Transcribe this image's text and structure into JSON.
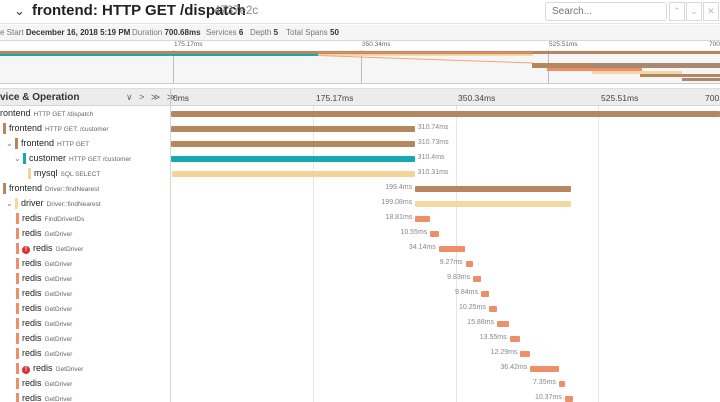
{
  "colors": {
    "frontend": "#b5875e",
    "customer": "#17a9b0",
    "mysql": "#f4d399",
    "driver": "#f3d9a1",
    "redis": "#ef8f6a",
    "error": "#d93434"
  },
  "header": {
    "chevron": "⌄",
    "title": "frontend: HTTP GET /dispatch",
    "trace_id": "4737e2c",
    "search_placeholder": "Search...",
    "nav_up": "⌃",
    "nav_down": "⌄",
    "nav_close": "✕"
  },
  "meta": {
    "start_label": "e Start",
    "start_value": "December 16, 2018 5:19 PM",
    "duration_label": "Duration",
    "duration_value": "700.68ms",
    "services_label": "Services",
    "services_value": "6",
    "depth_label": "Depth",
    "depth_value": "5",
    "spans_label": "Total Spans",
    "spans_value": "50"
  },
  "minimap_ticks": [
    "175.17ms",
    "350.34ms",
    "525.51ms",
    "700"
  ],
  "column_header": {
    "title": "vice & Operation",
    "controls": "∨ > ≫ ≫",
    "ticks": [
      "0ms",
      "175.17ms",
      "350.34ms",
      "525.51ms",
      "700."
    ]
  },
  "timeline": {
    "total_ms": 700.68
  },
  "spans": [
    {
      "service": "rontend",
      "op": "HTTP GET /dispatch",
      "depth": 0,
      "toggle": "",
      "color": "frontend",
      "start": 0,
      "dur": 700.68,
      "label": "",
      "error": false
    },
    {
      "service": "frontend",
      "op": "HTTP GET: /customer",
      "depth": 1,
      "toggle": "",
      "color": "frontend",
      "start": 0.4,
      "dur": 310.74,
      "label": "310.74ms",
      "error": false
    },
    {
      "service": "frontend",
      "op": "HTTP GET",
      "depth": 2,
      "toggle": "⌄",
      "color": "frontend",
      "start": 0.5,
      "dur": 310.73,
      "label": "310.73ms",
      "error": false
    },
    {
      "service": "customer",
      "op": "HTTP GET /customer",
      "depth": 3,
      "toggle": "⌄",
      "color": "customer",
      "start": 0.6,
      "dur": 310.4,
      "label": "310.4ms",
      "error": false
    },
    {
      "service": "mysql",
      "op": "SQL SELECT",
      "depth": 4,
      "toggle": "",
      "color": "mysql",
      "start": 0.7,
      "dur": 310.31,
      "label": "310.31ms",
      "error": false
    },
    {
      "service": "frontend",
      "op": "Driver::findNearest",
      "depth": 1,
      "toggle": "",
      "color": "frontend",
      "start": 311.5,
      "dur": 199.4,
      "label": "199.4ms",
      "error": false
    },
    {
      "service": "driver",
      "op": "Driver::findNearest",
      "depth": 2,
      "toggle": "⌄",
      "color": "driver",
      "start": 311.6,
      "dur": 199.08,
      "label": "199.08ms",
      "error": false
    },
    {
      "service": "redis",
      "op": "FindDriverIDs",
      "depth": 3,
      "toggle": "",
      "color": "redis",
      "start": 311.8,
      "dur": 18.81,
      "label": "18.81ms",
      "error": false
    },
    {
      "service": "redis",
      "op": "GetDriver",
      "depth": 3,
      "toggle": "",
      "color": "redis",
      "start": 330.9,
      "dur": 10.55,
      "label": "10.55ms",
      "error": false
    },
    {
      "service": "redis",
      "op": "GetDriver",
      "depth": 3,
      "toggle": "",
      "color": "redis",
      "start": 341.7,
      "dur": 34.14,
      "label": "34.14ms",
      "error": true
    },
    {
      "service": "redis",
      "op": "GetDriver",
      "depth": 3,
      "toggle": "",
      "color": "redis",
      "start": 376.1,
      "dur": 9.27,
      "label": "9.27ms",
      "error": false
    },
    {
      "service": "redis",
      "op": "GetDriver",
      "depth": 3,
      "toggle": "",
      "color": "redis",
      "start": 385.6,
      "dur": 9.83,
      "label": "9.83ms",
      "error": false
    },
    {
      "service": "redis",
      "op": "GetDriver",
      "depth": 3,
      "toggle": "",
      "color": "redis",
      "start": 395.6,
      "dur": 9.84,
      "label": "9.84ms",
      "error": false
    },
    {
      "service": "redis",
      "op": "GetDriver",
      "depth": 3,
      "toggle": "",
      "color": "redis",
      "start": 405.7,
      "dur": 10.25,
      "label": "10.25ms",
      "error": false
    },
    {
      "service": "redis",
      "op": "GetDriver",
      "depth": 3,
      "toggle": "",
      "color": "redis",
      "start": 416.1,
      "dur": 15.88,
      "label": "15.88ms",
      "error": false
    },
    {
      "service": "redis",
      "op": "GetDriver",
      "depth": 3,
      "toggle": "",
      "color": "redis",
      "start": 432.2,
      "dur": 13.55,
      "label": "13.55ms",
      "error": false
    },
    {
      "service": "redis",
      "op": "GetDriver",
      "depth": 3,
      "toggle": "",
      "color": "redis",
      "start": 446.0,
      "dur": 12.29,
      "label": "12.29ms",
      "error": false
    },
    {
      "service": "redis",
      "op": "GetDriver",
      "depth": 3,
      "toggle": "",
      "color": "redis",
      "start": 458.5,
      "dur": 36.42,
      "label": "36.42ms",
      "error": true
    },
    {
      "service": "redis",
      "op": "GetDriver",
      "depth": 3,
      "toggle": "",
      "color": "redis",
      "start": 495.1,
      "dur": 7.35,
      "label": "7.35ms",
      "error": false
    },
    {
      "service": "redis",
      "op": "GetDriver",
      "depth": 3,
      "toggle": "",
      "color": "redis",
      "start": 502.6,
      "dur": 10.37,
      "label": "10.37ms",
      "error": false
    }
  ]
}
